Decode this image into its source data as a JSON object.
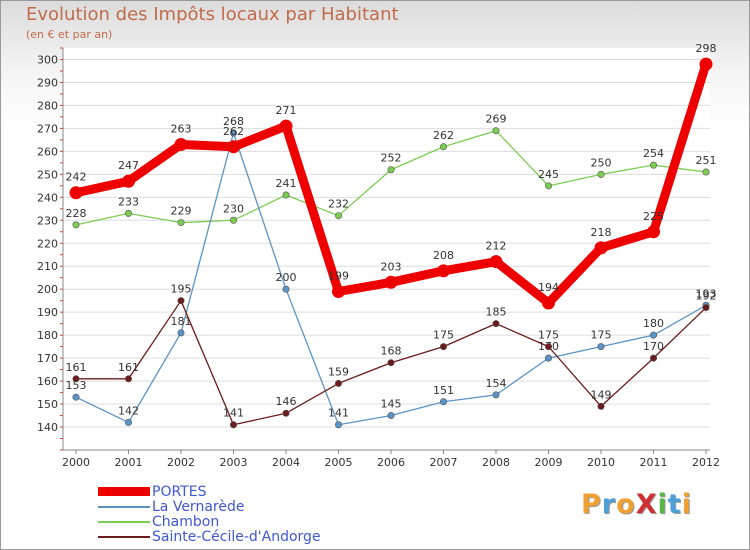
{
  "title": "Evolution des Impôts locaux par Habitant",
  "subtitle": "(en € et par an)",
  "logo": {
    "text": "ProXiti",
    "colors": [
      "#f0a030",
      "#4aa0d8",
      "#f0a030",
      "#d03030",
      "#58b848",
      "#4aa0d8",
      "#f0a030"
    ]
  },
  "chart_data": {
    "type": "line",
    "title": "Evolution des Impôts locaux par Habitant",
    "subtitle": "(en € et par an)",
    "xlabel": "",
    "ylabel": "",
    "ylim": [
      130,
      305
    ],
    "grid": "horizontal",
    "legend_position": "bottom-left",
    "yticks": [
      140,
      150,
      160,
      170,
      180,
      190,
      200,
      210,
      220,
      230,
      240,
      250,
      260,
      270,
      280,
      290,
      300
    ],
    "categories": [
      "2000",
      "2001",
      "2002",
      "2003",
      "2004",
      "2005",
      "2006",
      "2007",
      "2008",
      "2009",
      "2010",
      "2011",
      "2012"
    ],
    "series": [
      {
        "name": "PORTES",
        "color": "#ee0000",
        "values": [
          242,
          247,
          263,
          262,
          271,
          199,
          203,
          208,
          212,
          194,
          218,
          225,
          298
        ]
      },
      {
        "name": "La Vernarède",
        "color": "#5b93c7",
        "values": [
          153,
          142,
          181,
          268,
          200,
          141,
          145,
          151,
          154,
          170,
          175,
          180,
          193
        ]
      },
      {
        "name": "Chambon",
        "color": "#7ccc52",
        "values": [
          228,
          233,
          229,
          230,
          241,
          232,
          252,
          262,
          269,
          245,
          250,
          254,
          251
        ]
      },
      {
        "name": "Sainte-Cécile-d'Andorge",
        "color": "#6b1c1c",
        "values": [
          161,
          161,
          195,
          141,
          146,
          159,
          168,
          175,
          185,
          175,
          149,
          170,
          192
        ]
      }
    ]
  }
}
